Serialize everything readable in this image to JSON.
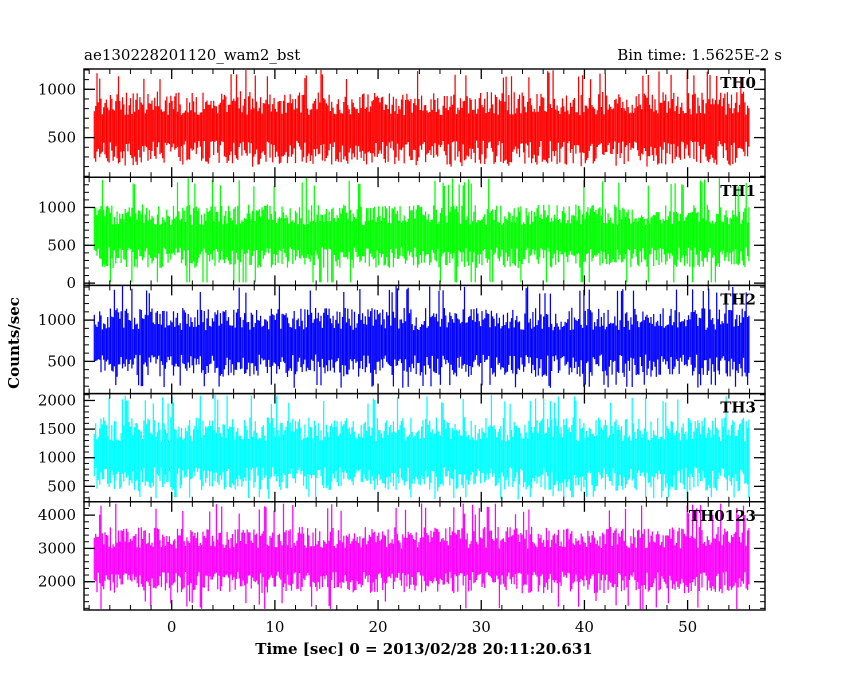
{
  "header": {
    "left_title": "ae130228201120_wam2_bst",
    "right_title": "Bin time: 1.5625E-2 s"
  },
  "chart_data": {
    "type": "line",
    "x_range": [
      -8.5,
      57.5
    ],
    "data_x_range": [
      -7.5,
      56.0
    ],
    "xlabel": "Time [sec] 0 = 2013/02/28 20:11:20.631",
    "ylabel": "Counts/sec",
    "x_major_ticks": [
      0,
      10,
      20,
      30,
      40,
      50
    ],
    "grid": false,
    "panels": [
      {
        "name": "TH0",
        "color": "#ff0000",
        "ylim": [
          90,
          1210
        ],
        "y_ticks": [
          500,
          1000
        ],
        "center": 600,
        "spread": 380,
        "spike_max": 1200,
        "dip_min": 220
      },
      {
        "name": "TH1",
        "color": "#00ff00",
        "ylim": [
          -30,
          1400
        ],
        "y_ticks": [
          0,
          500,
          1000
        ],
        "center": 620,
        "spread": 420,
        "spike_max": 1390,
        "dip_min": 10
      },
      {
        "name": "TH2",
        "color": "#0000ff",
        "ylim": [
          110,
          1420
        ],
        "y_ticks": [
          500,
          1000
        ],
        "center": 730,
        "spread": 420,
        "spike_max": 1420,
        "dip_min": 200
      },
      {
        "name": "TH3",
        "color": "#00ffff",
        "ylim": [
          230,
          2120
        ],
        "y_ticks": [
          500,
          1000,
          1500,
          2000
        ],
        "center": 1060,
        "spread": 650,
        "spike_max": 2100,
        "dip_min": 300
      },
      {
        "name": "TH0123",
        "color": "#ff00ff",
        "ylim": [
          1150,
          4400
        ],
        "y_ticks": [
          2000,
          3000,
          4000
        ],
        "center": 2650,
        "spread": 1000,
        "spike_max": 4350,
        "dip_min": 1300
      }
    ]
  }
}
